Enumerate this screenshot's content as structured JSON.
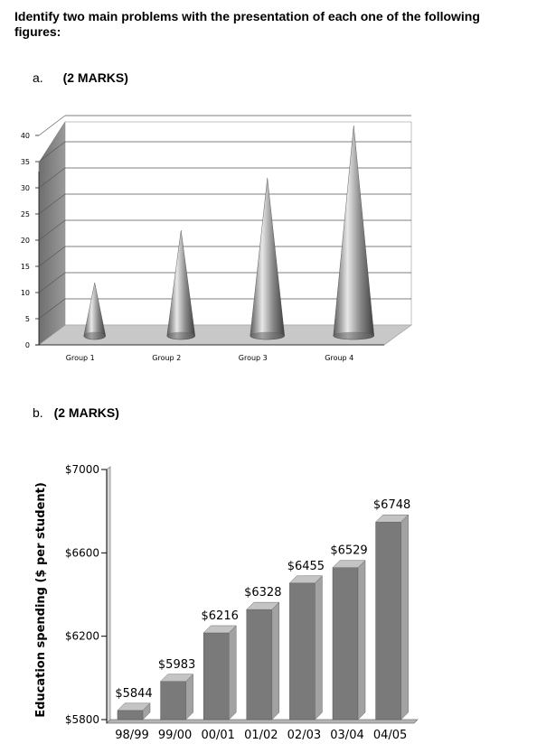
{
  "question": "Identify two main problems with the presentation of each one of the following figures:",
  "part_a": {
    "letter": "a.",
    "marks": "(2 MARKS)"
  },
  "part_b": {
    "letter": "b.",
    "marks": "(2 MARKS)"
  },
  "chart_data": [
    {
      "type": "bar",
      "style": "3d-cone",
      "categories": [
        "Group 1",
        "Group 2",
        "Group 3",
        "Group 4"
      ],
      "values": [
        10,
        20,
        30,
        40
      ],
      "yticks": [
        0,
        5,
        10,
        15,
        20,
        25,
        30,
        35,
        40
      ],
      "ylim": [
        0,
        40
      ],
      "grid": true,
      "colors": {
        "wall": "#8a8a8a",
        "floor": "#c8c8c8",
        "cone": "#9a9a9a"
      }
    },
    {
      "type": "bar",
      "style": "3d-column",
      "categories": [
        "98/99",
        "99/00",
        "00/01",
        "01/02",
        "02/03",
        "03/04",
        "04/05"
      ],
      "values": [
        5844,
        5983,
        6216,
        6328,
        6455,
        6529,
        6748
      ],
      "data_labels": [
        "$5844",
        "$5983",
        "$6216",
        "$6328",
        "$6455",
        "$6529",
        "$6748"
      ],
      "yticks": [
        "$5800",
        "$6200",
        "$6600",
        "$7000"
      ],
      "ylim": [
        5800,
        7000
      ],
      "ylabel": "Education spending ($ per student)",
      "colors": {
        "front": "#7a7a7a",
        "side": "#a2a2a2",
        "top": "#c4c4c4"
      }
    }
  ]
}
